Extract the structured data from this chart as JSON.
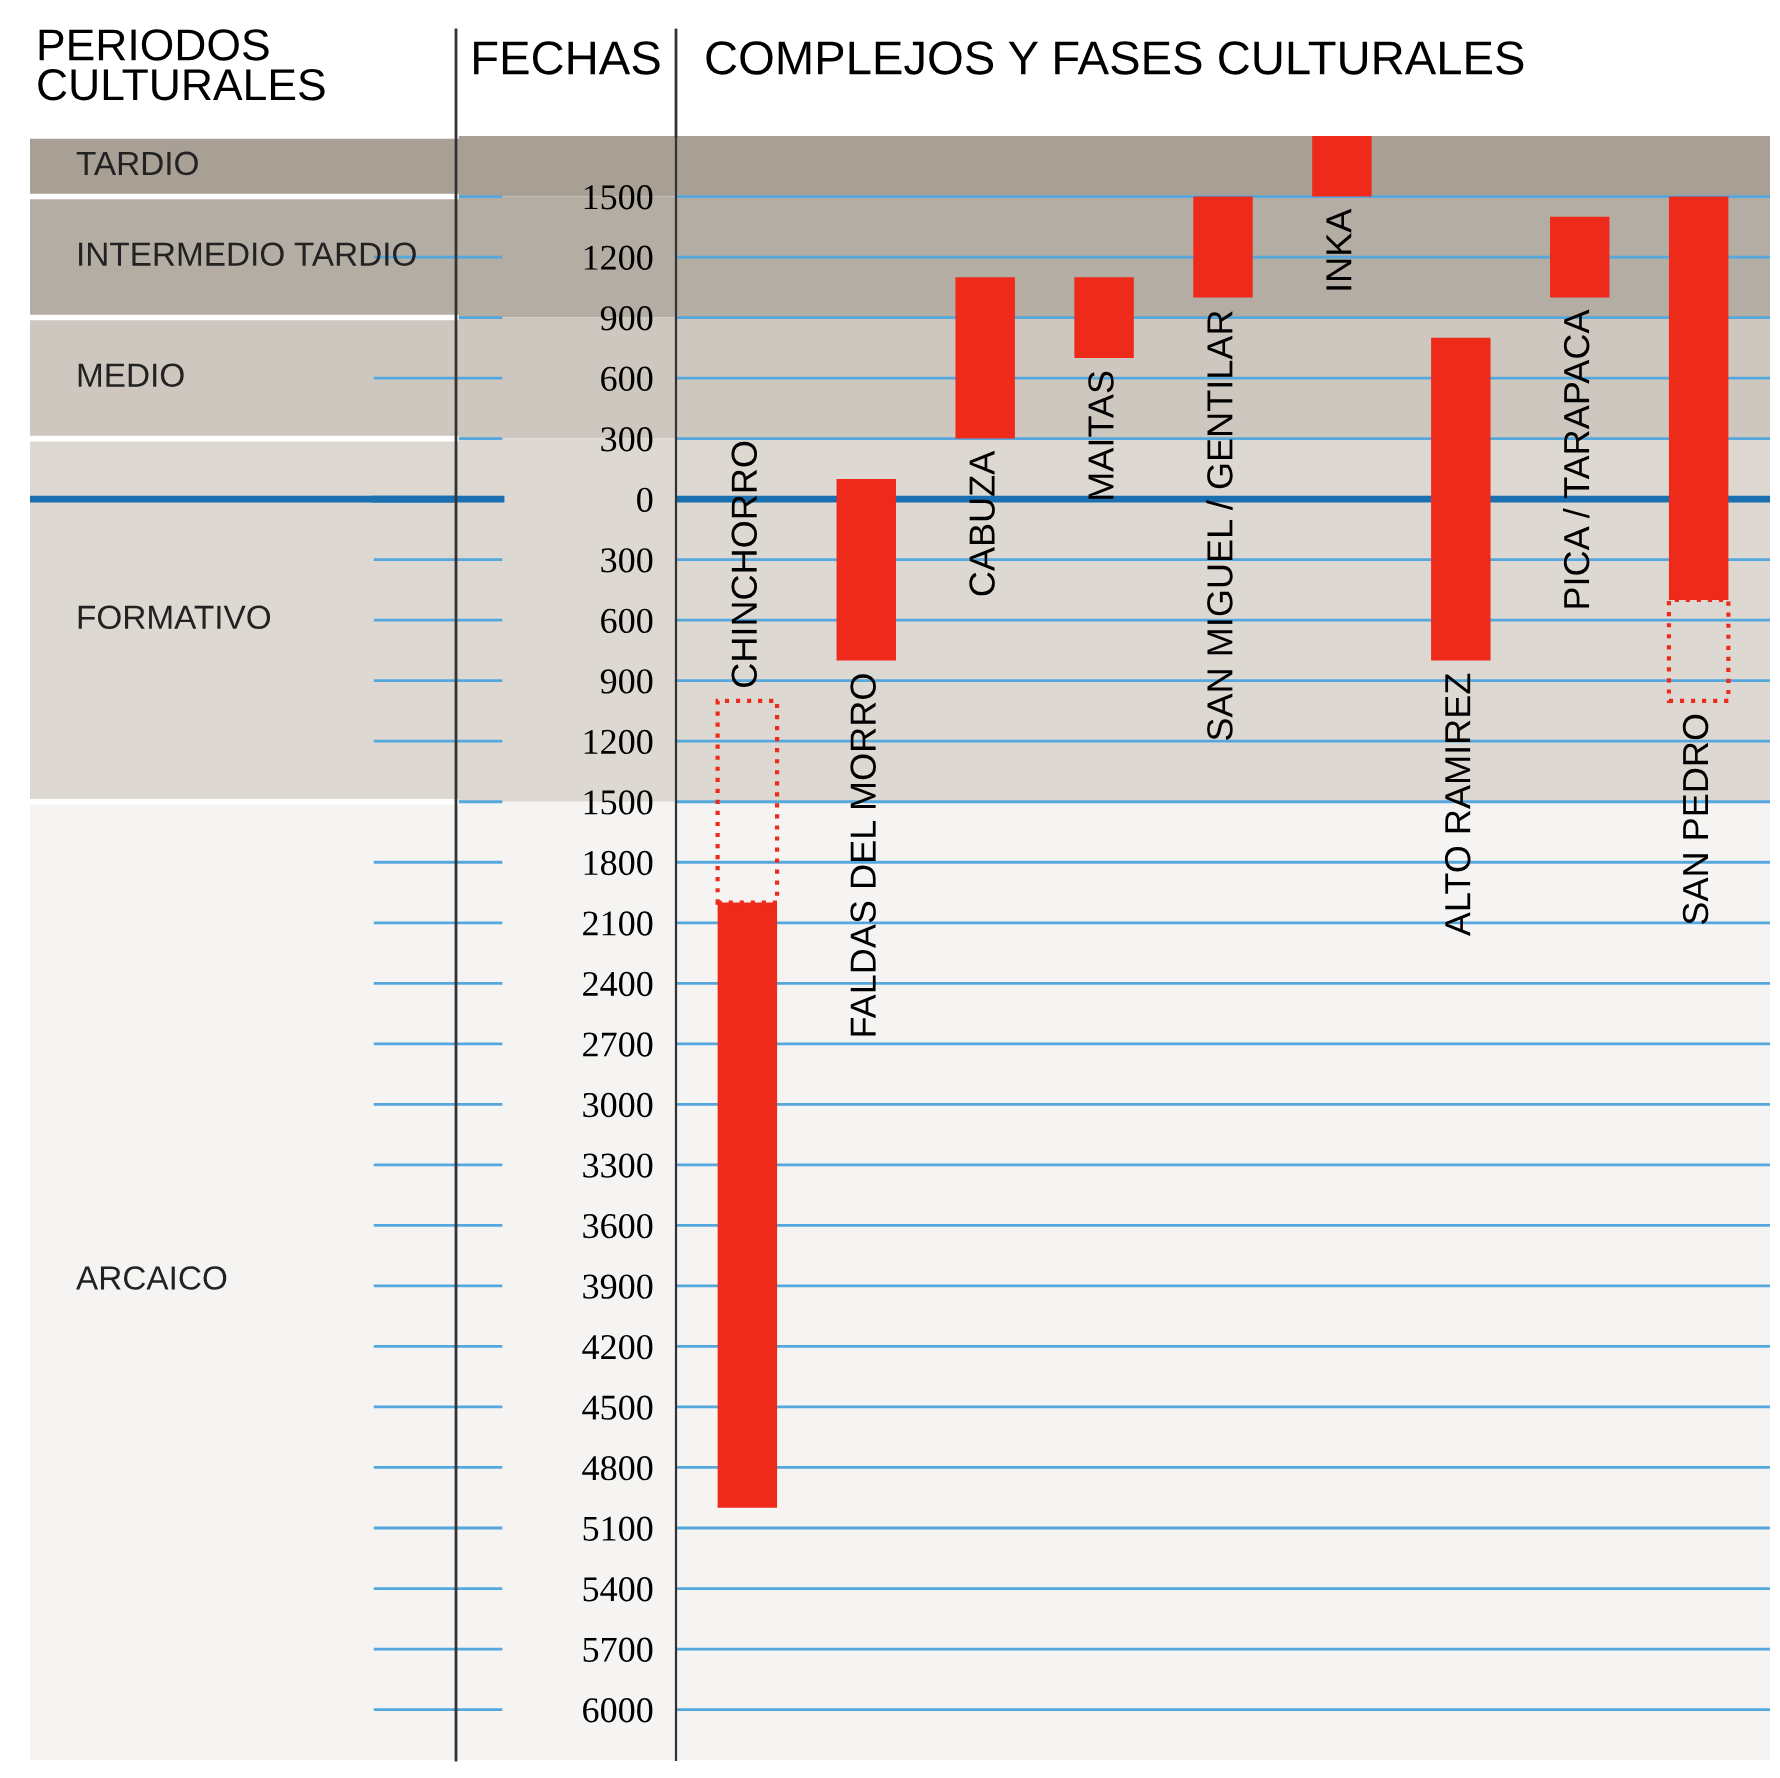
{
  "chart_data": {
    "type": "bar",
    "title": "COMPLEJOS Y FASES CULTURALES",
    "ylabel": "FECHAS",
    "annotations": [
      "PERIODOS CULTURALES"
    ],
    "categories": [
      "CHINCHORRO",
      "FALDAS DEL MORRO",
      "CABUZA",
      "MAITAS",
      "SAN MIGUEL / GENTILAR",
      "INKA",
      "ALTO RAMIREZ",
      "PICA / TARAPACA",
      "SAN PEDRO"
    ],
    "series": [
      {
        "color": "#ee2a1b",
        "base": [
          -5000,
          -800,
          300,
          700,
          1000,
          1500,
          -800,
          1000,
          -500
        ],
        "values": [
          3000,
          900,
          800,
          400,
          500,
          300,
          1600,
          400,
          2000
        ]
      },
      {
        "color": "#ee2a1b",
        "line_style": "dotted",
        "base": [
          -2000,
          null,
          null,
          null,
          null,
          null,
          null,
          null,
          -1000
        ],
        "values": [
          1000,
          null,
          null,
          null,
          null,
          null,
          null,
          null,
          500
        ]
      }
    ],
    "ylim": [
      -6250,
      1800
    ],
    "yticks": [
      1500,
      1200,
      900,
      600,
      300,
      0,
      {
        "value": -300,
        "label": "300"
      },
      {
        "value": -600,
        "label": "600"
      },
      {
        "value": -900,
        "label": "900"
      },
      {
        "value": -1200,
        "label": "1200"
      },
      {
        "value": -1500,
        "label": "1500"
      },
      {
        "value": -1800,
        "label": "1800"
      },
      {
        "value": -2100,
        "label": "2100"
      },
      {
        "value": -2400,
        "label": "2400"
      },
      {
        "value": -2700,
        "label": "2700"
      },
      {
        "value": -3000,
        "label": "3000"
      },
      {
        "value": -3300,
        "label": "3300"
      },
      {
        "value": -3600,
        "label": "3600"
      },
      {
        "value": -3900,
        "label": "3900"
      },
      {
        "value": -4200,
        "label": "4200"
      },
      {
        "value": -4500,
        "label": "4500"
      },
      {
        "value": -4800,
        "label": "4800"
      },
      {
        "value": -5100,
        "label": "5100"
      },
      {
        "value": -5400,
        "label": "5400"
      },
      {
        "value": -5700,
        "label": "5700"
      },
      {
        "value": -6000,
        "label": "6000"
      }
    ],
    "grid": "y",
    "ref_lines": [
      {
        "axis": "y",
        "value": 0,
        "color": "#1a6fb0"
      }
    ],
    "bands": [
      {
        "axis": "y",
        "from": 1500,
        "to": 1800,
        "label": "TARDIO",
        "color": "#a8a095"
      },
      {
        "axis": "y",
        "from": 900,
        "to": 1500,
        "label": "INTERMEDIO TARDIO",
        "color": "#b4ada3"
      },
      {
        "axis": "y",
        "from": 300,
        "to": 900,
        "label": "MEDIO",
        "color": "#cdc7bf"
      },
      {
        "axis": "y",
        "from": -1500,
        "to": 300,
        "label": "FORMATIVO",
        "color": "#ddd8d1"
      },
      {
        "axis": "y",
        "from": -6250,
        "to": -1500,
        "label": "ARCAICO",
        "color": "#f5f4f2"
      }
    ]
  }
}
